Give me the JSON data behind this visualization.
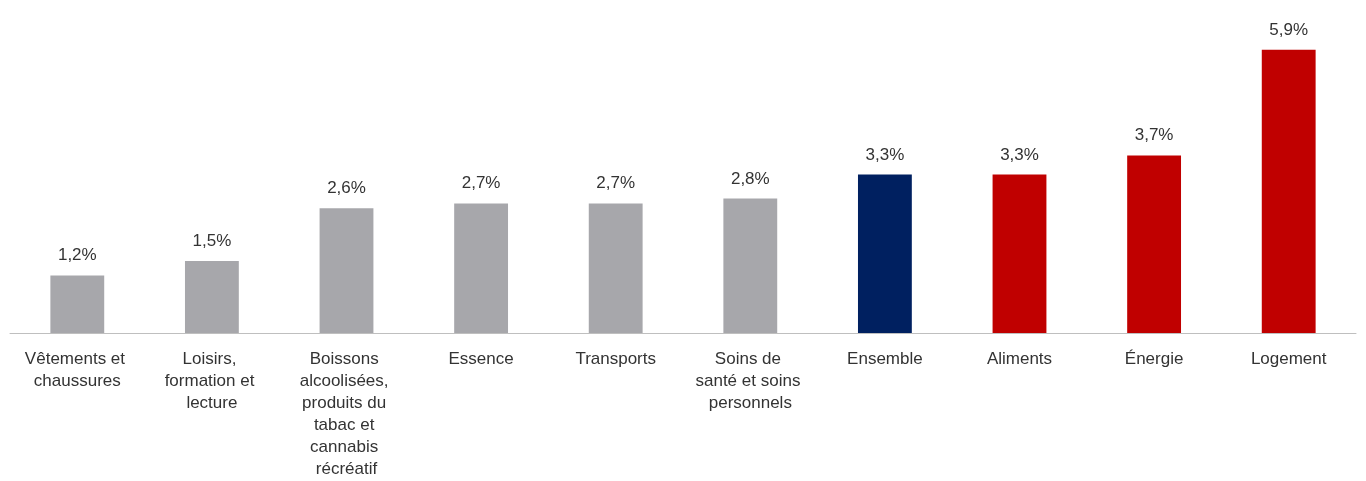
{
  "chart_data": {
    "type": "bar",
    "categories": [
      "Vêtements et chaussures",
      "Loisirs, formation et lecture",
      "Boissons alcoolisées, produits du tabac et cannabis récréatif",
      "Essence",
      "Transports",
      "Soins de santé et soins personnels",
      "Ensemble",
      "Aliments",
      "Énergie",
      "Logement"
    ],
    "values": [
      1.2,
      1.5,
      2.6,
      2.7,
      2.7,
      2.8,
      3.3,
      3.3,
      3.7,
      5.9
    ],
    "colors": [
      "#a7a7ab",
      "#a7a7ab",
      "#a7a7ab",
      "#a7a7ab",
      "#a7a7ab",
      "#a7a7ab",
      "#002060",
      "#c00000",
      "#c00000",
      "#c00000"
    ],
    "value_labels": [
      "1,2%",
      "1,5%",
      "2,6%",
      "2,7%",
      "2,7%",
      "2,8%",
      "3,3%",
      "3,3%",
      "3,7%",
      "5,9%"
    ]
  }
}
